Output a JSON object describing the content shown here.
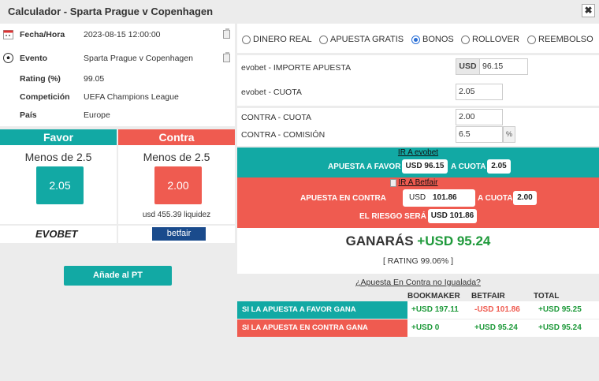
{
  "window": {
    "title": "Calculador - Sparta Prague v Copenhagen",
    "close_label": "✖"
  },
  "info": [
    {
      "label": "Fecha/Hora",
      "value": "2023-08-15 12:00:00"
    },
    {
      "label": "Evento",
      "value": "Sparta Prague v Copenhagen"
    },
    {
      "label": "Rating (%)",
      "value": "99.05"
    },
    {
      "label": "Competición",
      "value": "UEFA Champions League"
    },
    {
      "label": "País",
      "value": "Europe"
    }
  ],
  "favor": {
    "header": "Favor",
    "selection": "Menos de 2.5",
    "odds": "2.05",
    "bookmaker": "EVOBET",
    "color": "#12a9a4"
  },
  "contra": {
    "header": "Contra",
    "selection": "Menos de 2.5",
    "odds": "2.00",
    "liquidity": "usd 455.39 liquidez",
    "exchange": "betfair",
    "color": "#ef5b50"
  },
  "add_button": "Añade al PT",
  "modes": [
    {
      "label": "DINERO REAL",
      "selected": false
    },
    {
      "label": "APUESTA GRATIS",
      "selected": false
    },
    {
      "label": "BONOS",
      "selected": true
    },
    {
      "label": "ROLLOVER",
      "selected": false
    },
    {
      "label": "REEMBOLSO",
      "selected": false
    }
  ],
  "back": {
    "stake_label": "evobet - IMPORTE APUESTA",
    "currency": "USD",
    "stake": "96.15",
    "odds_label": "evobet - CUOTA",
    "odds": "2.05"
  },
  "lay": {
    "odds_label": "CONTRA - CUOTA",
    "odds": "2.00",
    "commission_label": "CONTRA - COMISIÓN",
    "commission": "6.5",
    "pct": "%"
  },
  "favor_band": {
    "link": "IR A evobet",
    "bet_label": "APUESTA A FAVOR",
    "bet_value": "USD 96.15",
    "odds_label": "A CUOTA",
    "odds_value": "2.05"
  },
  "contra_band": {
    "link": "IR A Betfair",
    "bet_label": "APUESTA EN CONTRA",
    "currency": "USD",
    "bet_value": "101.86",
    "odds_label": "A CUOTA",
    "odds_value": "2.00",
    "risk_label": "EL RIESGO SERÁ",
    "risk_value": "USD 101.86"
  },
  "result": {
    "prefix": "GANARÁS",
    "amount": "+USD 95.24",
    "rating": "[ RATING 99.06% ]"
  },
  "mismatch_link": "¿Apuesta En Contra no Igualada?",
  "table": {
    "headers": [
      "BOOKMAKER",
      "BETFAIR",
      "TOTAL"
    ],
    "rows": [
      {
        "label": "SI LA APUESTA A FAVOR GANA",
        "bookmaker": "+USD 197.11",
        "betfair": "-USD 101.86",
        "total": "+USD 95.25"
      },
      {
        "label": "SI LA APUESTA EN CONTRA GANA",
        "bookmaker": "+USD 0",
        "betfair": "+USD 95.24",
        "total": "+USD 95.24"
      }
    ]
  }
}
